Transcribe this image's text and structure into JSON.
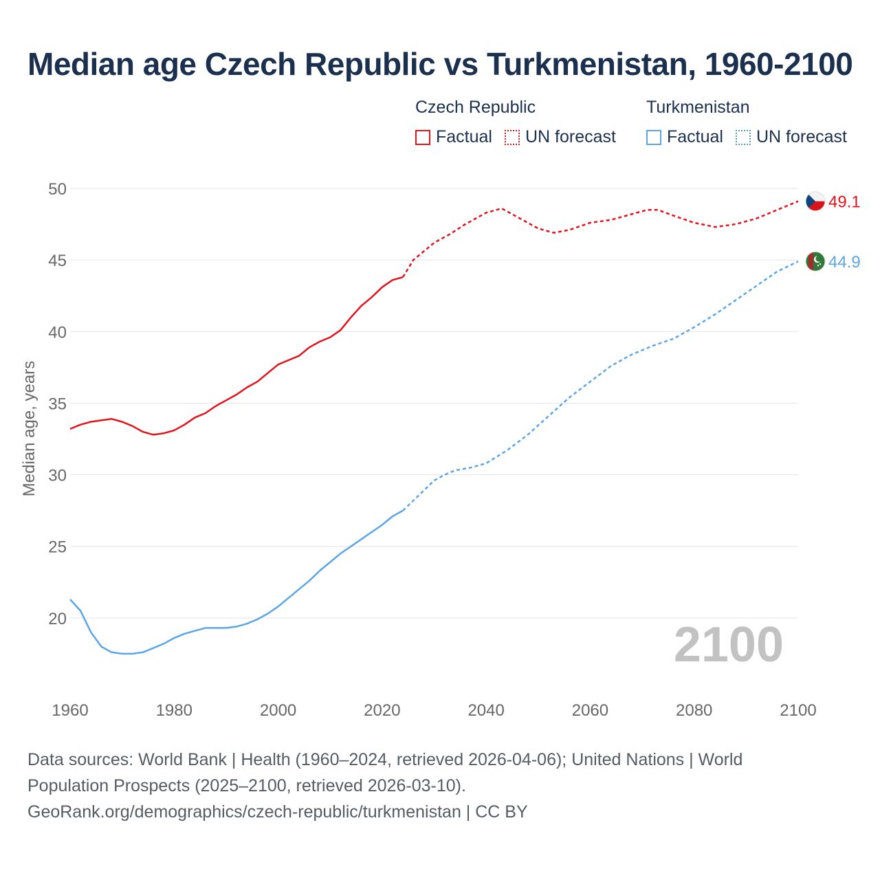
{
  "title": "Median age Czech Republic vs Turkmenistan, 1960-2100",
  "legend": {
    "czech": {
      "name": "Czech Republic",
      "factual": "Factual",
      "forecast": "UN forecast",
      "color": "#e3121b"
    },
    "turkmenistan": {
      "name": "Turkmenistan",
      "factual": "Factual",
      "forecast": "UN forecast",
      "color": "#5ba5e6",
      "forecast_color": "#4aa0b8"
    }
  },
  "chart_data": {
    "type": "line",
    "title": "Median age Czech Republic vs Turkmenistan, 1960-2100",
    "xlabel": "",
    "ylabel": "Median age, years",
    "xlim": [
      1960,
      2100
    ],
    "ylim": [
      15,
      50
    ],
    "xticks": [
      1960,
      1980,
      2000,
      2020,
      2040,
      2060,
      2080,
      2100
    ],
    "yticks": [
      20,
      25,
      30,
      35,
      40,
      45,
      50
    ],
    "grid": true,
    "year_watermark": "2100",
    "factual_until": 2024,
    "series": [
      {
        "name": "Czech Republic",
        "color": "#e3121b",
        "end_label": "49.1",
        "flag": "czech-flag",
        "points": [
          [
            1960,
            33.2
          ],
          [
            1962,
            33.5
          ],
          [
            1964,
            33.7
          ],
          [
            1966,
            33.8
          ],
          [
            1968,
            33.9
          ],
          [
            1970,
            33.7
          ],
          [
            1972,
            33.4
          ],
          [
            1974,
            33.0
          ],
          [
            1976,
            32.8
          ],
          [
            1978,
            32.9
          ],
          [
            1980,
            33.1
          ],
          [
            1982,
            33.5
          ],
          [
            1984,
            34.0
          ],
          [
            1986,
            34.3
          ],
          [
            1988,
            34.8
          ],
          [
            1990,
            35.2
          ],
          [
            1992,
            35.6
          ],
          [
            1994,
            36.1
          ],
          [
            1996,
            36.5
          ],
          [
            1998,
            37.1
          ],
          [
            2000,
            37.7
          ],
          [
            2002,
            38.0
          ],
          [
            2004,
            38.3
          ],
          [
            2006,
            38.9
          ],
          [
            2008,
            39.3
          ],
          [
            2010,
            39.6
          ],
          [
            2012,
            40.1
          ],
          [
            2014,
            41.0
          ],
          [
            2016,
            41.8
          ],
          [
            2018,
            42.4
          ],
          [
            2020,
            43.1
          ],
          [
            2022,
            43.6
          ],
          [
            2024,
            43.8
          ],
          [
            2026,
            45.0
          ],
          [
            2028,
            45.6
          ],
          [
            2030,
            46.2
          ],
          [
            2033,
            46.8
          ],
          [
            2036,
            47.5
          ],
          [
            2040,
            48.3
          ],
          [
            2043,
            48.6
          ],
          [
            2046,
            48.0
          ],
          [
            2050,
            47.2
          ],
          [
            2053,
            46.9
          ],
          [
            2056,
            47.1
          ],
          [
            2060,
            47.6
          ],
          [
            2064,
            47.8
          ],
          [
            2068,
            48.2
          ],
          [
            2071,
            48.5
          ],
          [
            2073,
            48.5
          ],
          [
            2076,
            48.1
          ],
          [
            2080,
            47.6
          ],
          [
            2084,
            47.3
          ],
          [
            2088,
            47.5
          ],
          [
            2092,
            47.9
          ],
          [
            2096,
            48.5
          ],
          [
            2100,
            49.1
          ]
        ]
      },
      {
        "name": "Turkmenistan",
        "color": "#5ba5e6",
        "end_label": "44.9",
        "flag": "turkmenistan-flag",
        "points": [
          [
            1960,
            21.3
          ],
          [
            1962,
            20.5
          ],
          [
            1964,
            19.0
          ],
          [
            1966,
            18.0
          ],
          [
            1968,
            17.6
          ],
          [
            1970,
            17.5
          ],
          [
            1972,
            17.5
          ],
          [
            1974,
            17.6
          ],
          [
            1976,
            17.9
          ],
          [
            1978,
            18.2
          ],
          [
            1980,
            18.6
          ],
          [
            1982,
            18.9
          ],
          [
            1984,
            19.1
          ],
          [
            1986,
            19.3
          ],
          [
            1988,
            19.3
          ],
          [
            1990,
            19.3
          ],
          [
            1992,
            19.4
          ],
          [
            1994,
            19.6
          ],
          [
            1996,
            19.9
          ],
          [
            1998,
            20.3
          ],
          [
            2000,
            20.8
          ],
          [
            2002,
            21.4
          ],
          [
            2004,
            22.0
          ],
          [
            2006,
            22.6
          ],
          [
            2008,
            23.3
          ],
          [
            2010,
            23.9
          ],
          [
            2012,
            24.5
          ],
          [
            2014,
            25.0
          ],
          [
            2016,
            25.5
          ],
          [
            2018,
            26.0
          ],
          [
            2020,
            26.5
          ],
          [
            2022,
            27.1
          ],
          [
            2024,
            27.5
          ],
          [
            2026,
            28.2
          ],
          [
            2028,
            28.9
          ],
          [
            2030,
            29.6
          ],
          [
            2032,
            30.0
          ],
          [
            2034,
            30.3
          ],
          [
            2037,
            30.5
          ],
          [
            2040,
            30.8
          ],
          [
            2044,
            31.7
          ],
          [
            2048,
            32.8
          ],
          [
            2052,
            34.1
          ],
          [
            2056,
            35.4
          ],
          [
            2060,
            36.5
          ],
          [
            2064,
            37.6
          ],
          [
            2068,
            38.4
          ],
          [
            2072,
            39.0
          ],
          [
            2076,
            39.5
          ],
          [
            2080,
            40.3
          ],
          [
            2084,
            41.2
          ],
          [
            2088,
            42.2
          ],
          [
            2092,
            43.2
          ],
          [
            2096,
            44.2
          ],
          [
            2100,
            44.9
          ]
        ]
      }
    ]
  },
  "source": {
    "line1": "Data sources: World Bank | Health (1960–2024, retrieved 2026-04-06); United Nations | World Population Prospects (2025–2100, retrieved 2026-03-10).",
    "line2": "GeoRank.org/demographics/czech-republic/turkmenistan | CC BY"
  }
}
